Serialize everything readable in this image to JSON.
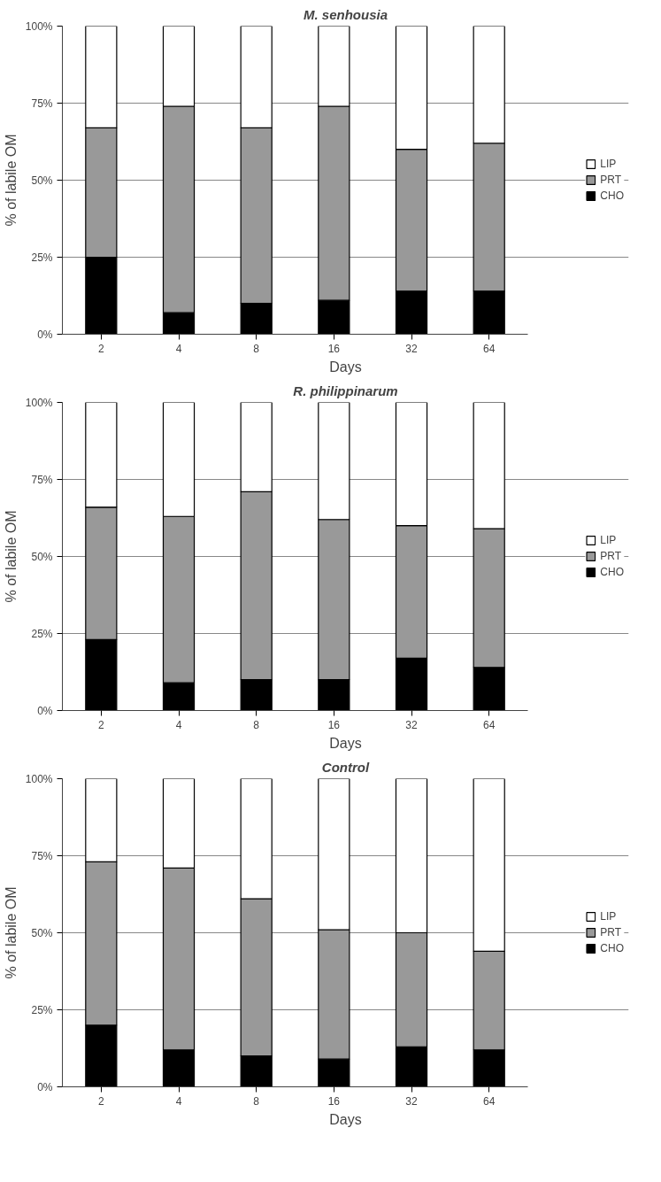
{
  "chart_data": [
    {
      "type": "bar",
      "title": "M. senhousia",
      "xlabel": "Days",
      "ylabel": "% of labile OM",
      "categories": [
        "2",
        "4",
        "8",
        "16",
        "32",
        "64"
      ],
      "stacked": true,
      "ylim": [
        0,
        100
      ],
      "yticks": [
        {
          "value": 0,
          "label": "0%"
        },
        {
          "value": 25,
          "label": "25%"
        },
        {
          "value": 50,
          "label": "50%"
        },
        {
          "value": 75,
          "label": "75%"
        },
        {
          "value": 100,
          "label": "100%"
        }
      ],
      "grid": "y",
      "legend": "right",
      "series": [
        {
          "name": "CHO",
          "color": "#000000",
          "values": [
            25,
            7,
            10,
            11,
            14,
            14
          ]
        },
        {
          "name": "PRT",
          "color": "#999999",
          "values": [
            42,
            67,
            57,
            63,
            46,
            48
          ]
        },
        {
          "name": "LIP",
          "color": "#ffffff",
          "values": [
            33,
            26,
            33,
            26,
            40,
            38
          ]
        }
      ]
    },
    {
      "type": "bar",
      "title": "R. philippinarum",
      "xlabel": "Days",
      "ylabel": "% of labile OM",
      "categories": [
        "2",
        "4",
        "8",
        "16",
        "32",
        "64"
      ],
      "stacked": true,
      "ylim": [
        0,
        100
      ],
      "yticks": [
        {
          "value": 0,
          "label": "0%"
        },
        {
          "value": 25,
          "label": "25%"
        },
        {
          "value": 50,
          "label": "50%"
        },
        {
          "value": 75,
          "label": "75%"
        },
        {
          "value": 100,
          "label": "100%"
        }
      ],
      "grid": "y",
      "legend": "right",
      "series": [
        {
          "name": "CHO",
          "color": "#000000",
          "values": [
            23,
            9,
            10,
            10,
            17,
            14
          ]
        },
        {
          "name": "PRT",
          "color": "#999999",
          "values": [
            43,
            54,
            61,
            52,
            43,
            45
          ]
        },
        {
          "name": "LIP",
          "color": "#ffffff",
          "values": [
            34,
            37,
            29,
            38,
            40,
            41
          ]
        }
      ]
    },
    {
      "type": "bar",
      "title": "Control",
      "xlabel": "Days",
      "ylabel": "% of labile OM",
      "categories": [
        "2",
        "4",
        "8",
        "16",
        "32",
        "64"
      ],
      "stacked": true,
      "ylim": [
        0,
        100
      ],
      "yticks": [
        {
          "value": 0,
          "label": "0%"
        },
        {
          "value": 25,
          "label": "25%"
        },
        {
          "value": 50,
          "label": "50%"
        },
        {
          "value": 75,
          "label": "75%"
        },
        {
          "value": 100,
          "label": "100%"
        }
      ],
      "grid": "y",
      "legend": "right",
      "series": [
        {
          "name": "CHO",
          "color": "#000000",
          "values": [
            20,
            12,
            10,
            9,
            13,
            12
          ]
        },
        {
          "name": "PRT",
          "color": "#999999",
          "values": [
            53,
            59,
            51,
            42,
            37,
            32
          ]
        },
        {
          "name": "LIP",
          "color": "#ffffff",
          "values": [
            27,
            29,
            39,
            49,
            50,
            56
          ]
        }
      ]
    }
  ]
}
